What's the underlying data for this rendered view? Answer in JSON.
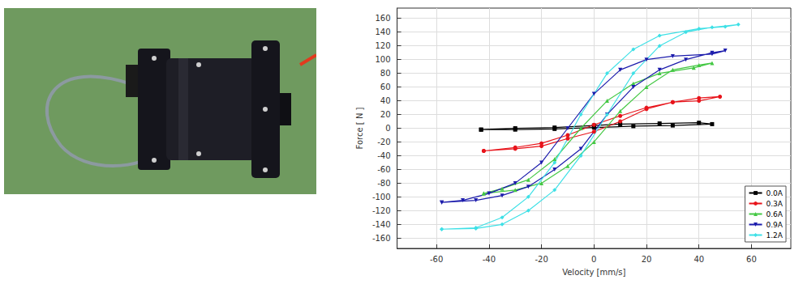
{
  "chart_data": {
    "type": "line",
    "xlabel": "Velocity [mm/s]",
    "ylabel": "Force [ N ]",
    "xlim": [
      -75,
      75
    ],
    "xticks": [
      -60,
      -40,
      -20,
      0,
      20,
      40,
      60
    ],
    "ylim": [
      -175,
      175
    ],
    "yticks": [
      -160,
      -140,
      -120,
      -100,
      -80,
      -60,
      -40,
      -20,
      0,
      20,
      40,
      60,
      80,
      100,
      120,
      140,
      160
    ],
    "grid": true,
    "legend": "lower right",
    "series": [
      {
        "name": "0.0A",
        "color": "#000000",
        "marker": "square",
        "x": [
          -43,
          -30,
          -15,
          0,
          15,
          30,
          45,
          40,
          25,
          10,
          0,
          -15,
          -30,
          -43
        ],
        "values": [
          -2,
          -2,
          -1,
          1,
          3,
          4,
          6,
          8,
          7,
          6,
          4,
          1,
          0,
          -2
        ]
      },
      {
        "name": "0.3A",
        "color": "#e8141b",
        "marker": "circle",
        "x": [
          -42,
          -30,
          -20,
          -10,
          0,
          10,
          20,
          30,
          40,
          48,
          40,
          30,
          20,
          10,
          0,
          -10,
          -20,
          -30,
          -42
        ],
        "values": [
          -33,
          -30,
          -26,
          -15,
          -5,
          10,
          28,
          38,
          44,
          46,
          40,
          38,
          30,
          18,
          5,
          -10,
          -22,
          -28,
          -33
        ]
      },
      {
        "name": "0.6A",
        "color": "#44c844",
        "marker": "triangle",
        "x": [
          -42,
          -30,
          -20,
          -10,
          0,
          10,
          20,
          30,
          40,
          45,
          38,
          25,
          15,
          5,
          -5,
          -15,
          -25,
          -35,
          -42
        ],
        "values": [
          -95,
          -90,
          -80,
          -55,
          -20,
          25,
          60,
          85,
          92,
          95,
          88,
          80,
          65,
          40,
          0,
          -45,
          -75,
          -88,
          -95
        ]
      },
      {
        "name": "0.9A",
        "color": "#1c1cac",
        "marker": "triangle-down",
        "x": [
          -58,
          -45,
          -35,
          -25,
          -15,
          -5,
          5,
          15,
          25,
          35,
          45,
          50,
          45,
          30,
          20,
          10,
          0,
          -10,
          -20,
          -30,
          -40,
          -50,
          -58
        ],
        "values": [
          -108,
          -105,
          -98,
          -85,
          -60,
          -30,
          20,
          60,
          85,
          100,
          110,
          113,
          108,
          105,
          100,
          85,
          50,
          0,
          -50,
          -80,
          -95,
          -105,
          -108
        ]
      },
      {
        "name": "1.2A",
        "color": "#3ee0e6",
        "marker": "diamond",
        "x": [
          -58,
          -45,
          -35,
          -25,
          -15,
          -5,
          5,
          15,
          25,
          35,
          45,
          55,
          50,
          40,
          25,
          15,
          5,
          -5,
          -15,
          -25,
          -35,
          -45,
          -58
        ],
        "values": [
          -147,
          -146,
          -140,
          -120,
          -90,
          -40,
          20,
          80,
          120,
          140,
          147,
          151,
          148,
          145,
          135,
          115,
          80,
          20,
          -50,
          -100,
          -130,
          -145,
          -147
        ]
      }
    ]
  }
}
